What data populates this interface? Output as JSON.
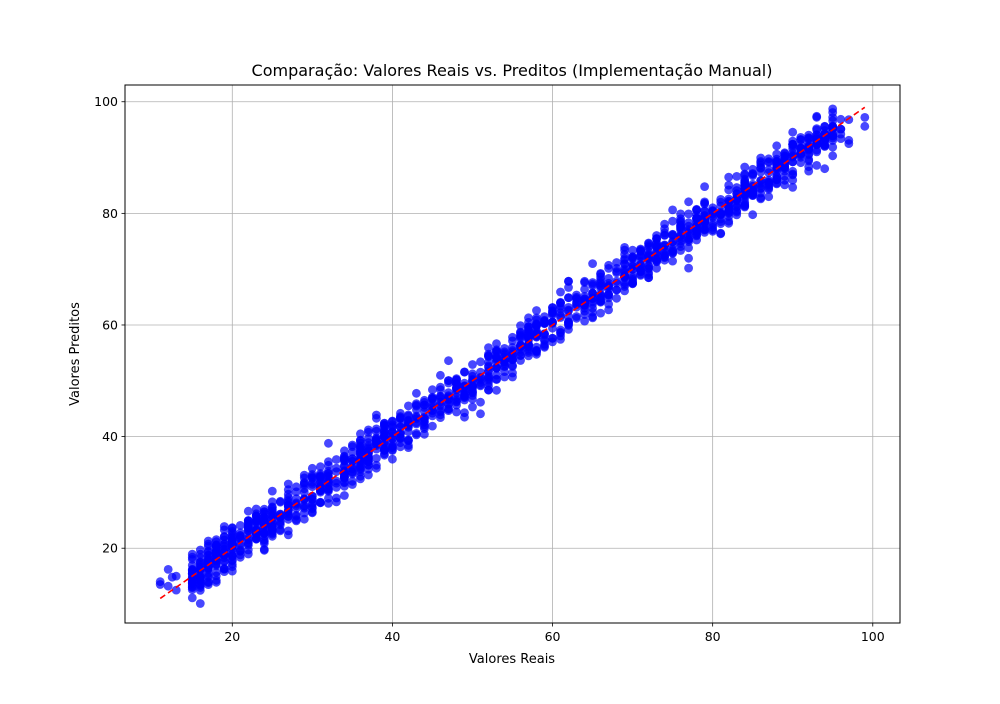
{
  "chart_data": {
    "type": "scatter",
    "title": "Comparação: Valores Reais vs. Preditos (Implementação Manual)",
    "xlabel": "Valores Reais",
    "ylabel": "Valores Preditos",
    "xlim": [
      6.6,
      103.4
    ],
    "ylim": [
      6.6,
      103.0
    ],
    "xticks": [
      "20",
      "40",
      "60",
      "80",
      "100"
    ],
    "yticks": [
      "20",
      "40",
      "60",
      "80",
      "100"
    ],
    "grid": true,
    "point_color": "#0000ff",
    "point_count": 1500,
    "x_range": [
      11,
      99
    ],
    "reference_line": {
      "label": "",
      "color": "#ff0000",
      "style": "dashed",
      "from": [
        11,
        11
      ],
      "to": [
        99,
        99
      ]
    },
    "points": [
      [
        11,
        14
      ],
      [
        11,
        13.5
      ],
      [
        12,
        16.2
      ],
      [
        12,
        13.2
      ],
      [
        12.5,
        14.8
      ],
      [
        13,
        12.5
      ],
      [
        13,
        15
      ],
      [
        15,
        18.4
      ],
      [
        15,
        15.5
      ],
      [
        16,
        14.3
      ],
      [
        16,
        17.5
      ],
      [
        17,
        16.8
      ],
      [
        17,
        18.2
      ],
      [
        18,
        13.9
      ],
      [
        18,
        15.7
      ],
      [
        18,
        19.5
      ],
      [
        19,
        17.7
      ],
      [
        19,
        22.1
      ],
      [
        20,
        21.4
      ],
      [
        20,
        18.6
      ],
      [
        21,
        20.5
      ],
      [
        21,
        18.8
      ],
      [
        22,
        24.5
      ],
      [
        22,
        21.0
      ],
      [
        23,
        22.6
      ],
      [
        23,
        25.8
      ],
      [
        24,
        20.9
      ],
      [
        24,
        23.4
      ],
      [
        25,
        26.9
      ],
      [
        25,
        24.1
      ],
      [
        26,
        28.4
      ],
      [
        26,
        25.6
      ],
      [
        27,
        31.5
      ],
      [
        27,
        25.7
      ],
      [
        28,
        30.1
      ],
      [
        28,
        24.9
      ],
      [
        29,
        33.1
      ],
      [
        29,
        25.2
      ],
      [
        30,
        27.8
      ],
      [
        30,
        32.9
      ],
      [
        31,
        34.6
      ],
      [
        31,
        28.2
      ],
      [
        32,
        38.8
      ],
      [
        32,
        30.2
      ],
      [
        33,
        35.9
      ],
      [
        33,
        28.3
      ],
      [
        34,
        33.5
      ],
      [
        34,
        31.1
      ],
      [
        35,
        38.5
      ],
      [
        35,
        34.2
      ],
      [
        36,
        39.3
      ],
      [
        36,
        33.7
      ],
      [
        37,
        37.4
      ],
      [
        37,
        41.2
      ],
      [
        38,
        36.1
      ],
      [
        38,
        39.8
      ],
      [
        39,
        42.1
      ],
      [
        39,
        37.5
      ],
      [
        40,
        37.5
      ],
      [
        40,
        42.8
      ],
      [
        41,
        40.5
      ],
      [
        41,
        43.6
      ],
      [
        42,
        39.4
      ],
      [
        42,
        41.9
      ],
      [
        43,
        44.8
      ],
      [
        43,
        40.3
      ],
      [
        44,
        46.5
      ],
      [
        44,
        42.1
      ],
      [
        45,
        43.7
      ],
      [
        45,
        48.4
      ],
      [
        46,
        44.4
      ],
      [
        46,
        47.2
      ],
      [
        47,
        53.6
      ],
      [
        47,
        45.0
      ],
      [
        48,
        48.7
      ],
      [
        48,
        46.2
      ],
      [
        49,
        51.6
      ],
      [
        49,
        47.1
      ],
      [
        50,
        50.8
      ],
      [
        50,
        48.9
      ],
      [
        51,
        53.4
      ],
      [
        51,
        49.7
      ],
      [
        52,
        54.5
      ],
      [
        52,
        50.1
      ],
      [
        53,
        48.3
      ],
      [
        53,
        52.2
      ],
      [
        54,
        55.8
      ],
      [
        54,
        53.0
      ],
      [
        55,
        57.8
      ],
      [
        55,
        51.4
      ],
      [
        56,
        54.5
      ],
      [
        56,
        58.3
      ],
      [
        57,
        56.2
      ],
      [
        57,
        59.7
      ],
      [
        58,
        62.6
      ],
      [
        58,
        55.3
      ],
      [
        59,
        58.4
      ],
      [
        59,
        61.5
      ],
      [
        60,
        60.3
      ],
      [
        60,
        57.6
      ],
      [
        61,
        62.9
      ],
      [
        61,
        59.1
      ],
      [
        62,
        67.8
      ],
      [
        62,
        60.5
      ],
      [
        63,
        64.7
      ],
      [
        63,
        61.2
      ],
      [
        64,
        63.5
      ],
      [
        64,
        66.4
      ],
      [
        65,
        71.0
      ],
      [
        65,
        63.0
      ],
      [
        66,
        65.3
      ],
      [
        66,
        69.1
      ],
      [
        67,
        70.7
      ],
      [
        67,
        62.7
      ],
      [
        68,
        69.6
      ],
      [
        68,
        66.3
      ],
      [
        69,
        73.9
      ],
      [
        69,
        66.9
      ],
      [
        70,
        70.9
      ],
      [
        70,
        67.5
      ],
      [
        71,
        72.2
      ],
      [
        71,
        69.6
      ],
      [
        72,
        74.2
      ],
      [
        72,
        70.1
      ],
      [
        73,
        75.5
      ],
      [
        73,
        71.6
      ],
      [
        74,
        76.5
      ],
      [
        74,
        72.2
      ],
      [
        75,
        78.6
      ],
      [
        75,
        73.3
      ],
      [
        76,
        77.3
      ],
      [
        76,
        74.6
      ],
      [
        77,
        70.2
      ],
      [
        77,
        79.9
      ],
      [
        78,
        78.4
      ],
      [
        78,
        76.7
      ],
      [
        79,
        80.5
      ],
      [
        79,
        84.8
      ],
      [
        80,
        81.0
      ],
      [
        80,
        78.3
      ],
      [
        81,
        82.5
      ],
      [
        81,
        79.8
      ],
      [
        82,
        86.5
      ],
      [
        82,
        78.6
      ],
      [
        83,
        84.1
      ],
      [
        83,
        81.2
      ],
      [
        84,
        85.6
      ],
      [
        84,
        82.7
      ],
      [
        85,
        87.9
      ],
      [
        85,
        84.0
      ],
      [
        86,
        88.2
      ],
      [
        86,
        82.8
      ],
      [
        87,
        85.4
      ],
      [
        87,
        89.3
      ],
      [
        88,
        92.1
      ],
      [
        88,
        86.0
      ],
      [
        89,
        90.2
      ],
      [
        89,
        88.0
      ],
      [
        90,
        86.9
      ],
      [
        90,
        92.4
      ],
      [
        91,
        90.7
      ],
      [
        91,
        93.2
      ],
      [
        92,
        91.5
      ],
      [
        92,
        89.4
      ],
      [
        93,
        97.4
      ],
      [
        93,
        94.1
      ],
      [
        93,
        88.6
      ],
      [
        94,
        92.3
      ],
      [
        94,
        88.0
      ],
      [
        95,
        96.6
      ],
      [
        95,
        93.9
      ],
      [
        96,
        95.1
      ],
      [
        96,
        93.4
      ],
      [
        97,
        92.5
      ],
      [
        97,
        96.8
      ],
      [
        97,
        93.1
      ],
      [
        99,
        97.2
      ],
      [
        99,
        95.6
      ],
      [
        95,
        95.2
      ],
      [
        94,
        95.6
      ],
      [
        92,
        93.5
      ],
      [
        90,
        90.8
      ],
      [
        88,
        88.8
      ],
      [
        86,
        85.8
      ]
    ]
  }
}
